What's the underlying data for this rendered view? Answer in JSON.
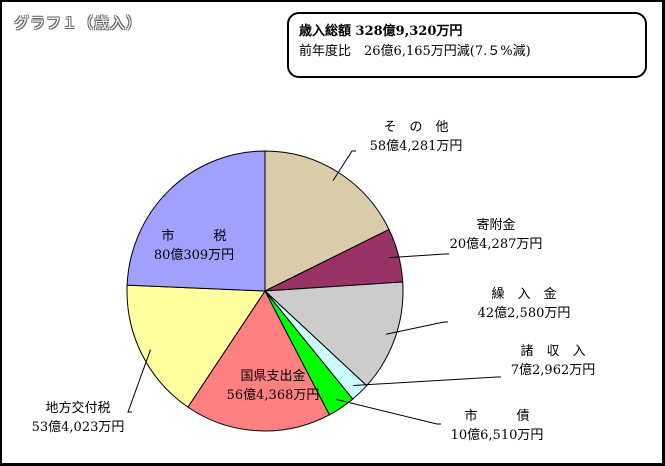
{
  "title": "グラフ１（歳入）",
  "summary": {
    "line1": "歳入総額 328億9,320万円",
    "line2": "前年度比　26億6,165万円減(7.５%減)"
  },
  "chart_data": {
    "type": "pie",
    "unit": "億円",
    "slices": [
      {
        "name": "その他",
        "label_name": "そ　の　他",
        "label_value": "58億4,281万円",
        "value": 58.4281,
        "color": "#d9cca8"
      },
      {
        "name": "寄附金",
        "label_name": "寄附金",
        "label_value": "20億4,287万円",
        "value": 20.4287,
        "color": "#993366"
      },
      {
        "name": "繰入金",
        "label_name": "繰　入　金",
        "label_value": "42億2,580万円",
        "value": 42.258,
        "color": "#cccccc"
      },
      {
        "name": "諸収入",
        "label_name": "諸　収　入",
        "label_value": "7億2,962万円",
        "value": 7.2962,
        "color": "#ccffff"
      },
      {
        "name": "市債",
        "label_name": "市　　　債",
        "label_value": "10億6,510万円",
        "value": 10.651,
        "color": "#00ff00"
      },
      {
        "name": "国県支出金",
        "label_name": "国県支出金",
        "label_value": "56億4,368万円",
        "value": 56.4368,
        "color": "#ff8080"
      },
      {
        "name": "地方交付税",
        "label_name": "地方交付税",
        "label_value": "53億4,023万円",
        "value": 53.4023,
        "color": "#ffffa0"
      },
      {
        "name": "市税",
        "label_name": "市　　　税",
        "label_value": "80億309万円",
        "value": 80.0309,
        "color": "#a0a0ff"
      }
    ]
  }
}
